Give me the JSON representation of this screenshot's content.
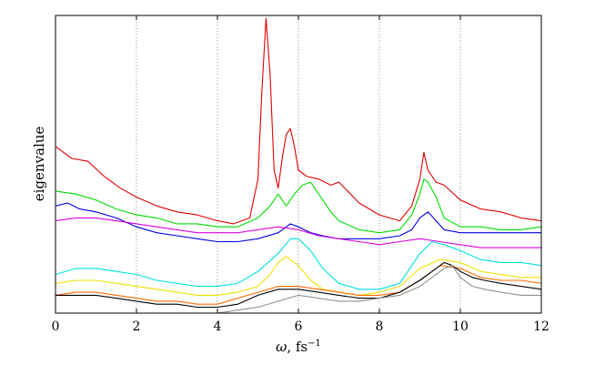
{
  "chart_data": {
    "type": "line",
    "title": "",
    "xlabel_symbol": "ω",
    "xlabel_unit": ", fs",
    "xlabel_exp": "−1",
    "ylabel": "eigenvalue",
    "xlim": [
      0,
      12
    ],
    "ylim": [
      0,
      1
    ],
    "x_ticks": [
      0,
      2,
      4,
      6,
      8,
      10,
      12
    ],
    "grid": "vertical dotted at 2, 4, 6, 8, 10",
    "y_ticks_labeled": false,
    "legend": "none",
    "series": [
      {
        "color": "#e00000",
        "x": [
          0,
          0.4,
          0.8,
          1.2,
          1.6,
          2.0,
          2.5,
          3.0,
          3.5,
          4.0,
          4.4,
          4.8,
          5.0,
          5.1,
          5.2,
          5.3,
          5.4,
          5.5,
          5.6,
          5.7,
          5.8,
          5.9,
          6.0,
          6.2,
          6.5,
          6.8,
          7.0,
          7.5,
          8.0,
          8.5,
          8.8,
          9.0,
          9.1,
          9.2,
          9.4,
          9.6,
          10.0,
          10.5,
          11.0,
          11.5,
          12.0
        ],
        "y": [
          0.56,
          0.52,
          0.51,
          0.46,
          0.42,
          0.39,
          0.36,
          0.34,
          0.33,
          0.31,
          0.3,
          0.32,
          0.45,
          0.75,
          0.99,
          0.8,
          0.48,
          0.42,
          0.52,
          0.6,
          0.62,
          0.56,
          0.48,
          0.46,
          0.45,
          0.43,
          0.44,
          0.37,
          0.33,
          0.31,
          0.36,
          0.45,
          0.54,
          0.48,
          0.44,
          0.43,
          0.38,
          0.35,
          0.34,
          0.32,
          0.31
        ]
      },
      {
        "color": "#00dd00",
        "x": [
          0,
          0.5,
          1.0,
          1.5,
          2.0,
          2.5,
          3.0,
          3.5,
          4.0,
          4.5,
          5.0,
          5.3,
          5.5,
          5.7,
          5.9,
          6.1,
          6.3,
          6.5,
          6.8,
          7.0,
          7.5,
          8.0,
          8.5,
          8.8,
          9.0,
          9.1,
          9.2,
          9.4,
          9.6,
          10.0,
          10.5,
          11.0,
          11.5,
          12.0
        ],
        "y": [
          0.41,
          0.4,
          0.38,
          0.35,
          0.33,
          0.32,
          0.3,
          0.3,
          0.29,
          0.29,
          0.32,
          0.36,
          0.4,
          0.36,
          0.4,
          0.43,
          0.44,
          0.4,
          0.34,
          0.31,
          0.28,
          0.27,
          0.28,
          0.33,
          0.4,
          0.45,
          0.44,
          0.39,
          0.32,
          0.29,
          0.29,
          0.28,
          0.28,
          0.29
        ]
      },
      {
        "color": "#0000dd",
        "x": [
          0,
          0.3,
          0.6,
          1.0,
          1.5,
          2.0,
          2.5,
          3.0,
          3.5,
          4.0,
          4.5,
          5.0,
          5.5,
          5.8,
          6.0,
          6.3,
          6.6,
          7.0,
          7.5,
          8.0,
          8.5,
          8.8,
          9.0,
          9.2,
          9.4,
          9.6,
          10.0,
          10.5,
          11.0,
          11.5,
          12.0
        ],
        "y": [
          0.36,
          0.37,
          0.35,
          0.34,
          0.32,
          0.29,
          0.27,
          0.26,
          0.25,
          0.24,
          0.24,
          0.25,
          0.27,
          0.3,
          0.29,
          0.27,
          0.26,
          0.25,
          0.25,
          0.25,
          0.26,
          0.28,
          0.32,
          0.34,
          0.31,
          0.28,
          0.27,
          0.27,
          0.27,
          0.27,
          0.27
        ]
      },
      {
        "color": "#dd00dd",
        "x": [
          0,
          0.5,
          1.0,
          1.5,
          2.0,
          2.5,
          3.0,
          3.5,
          4.0,
          4.5,
          5.0,
          5.5,
          6.0,
          6.5,
          7.0,
          7.5,
          8.0,
          8.5,
          9.0,
          9.5,
          10.0,
          10.5,
          11.0,
          11.5,
          12.0
        ],
        "y": [
          0.31,
          0.32,
          0.32,
          0.31,
          0.3,
          0.29,
          0.28,
          0.27,
          0.27,
          0.27,
          0.28,
          0.29,
          0.28,
          0.26,
          0.25,
          0.24,
          0.23,
          0.24,
          0.25,
          0.24,
          0.23,
          0.22,
          0.22,
          0.22,
          0.22
        ]
      },
      {
        "color": "#00e0e0",
        "x": [
          0,
          0.5,
          1.0,
          1.5,
          2.0,
          2.5,
          3.0,
          3.5,
          4.0,
          4.5,
          5.0,
          5.5,
          5.8,
          6.0,
          6.3,
          6.6,
          7.0,
          7.5,
          8.0,
          8.5,
          9.0,
          9.3,
          9.6,
          10.0,
          10.5,
          11.0,
          11.5,
          12.0
        ],
        "y": [
          0.13,
          0.15,
          0.15,
          0.14,
          0.13,
          0.11,
          0.1,
          0.09,
          0.09,
          0.1,
          0.14,
          0.2,
          0.25,
          0.25,
          0.21,
          0.15,
          0.1,
          0.08,
          0.08,
          0.1,
          0.2,
          0.24,
          0.23,
          0.21,
          0.18,
          0.17,
          0.17,
          0.16
        ]
      },
      {
        "color": "#f0e000",
        "x": [
          0,
          0.5,
          1.0,
          1.5,
          2.0,
          2.5,
          3.0,
          3.5,
          4.0,
          4.5,
          5.0,
          5.3,
          5.5,
          5.7,
          6.0,
          6.3,
          6.6,
          7.0,
          7.5,
          8.0,
          8.5,
          9.0,
          9.5,
          10.0,
          10.5,
          11.0,
          11.5,
          12.0
        ],
        "y": [
          0.1,
          0.11,
          0.11,
          0.1,
          0.09,
          0.08,
          0.07,
          0.06,
          0.06,
          0.07,
          0.09,
          0.13,
          0.17,
          0.19,
          0.16,
          0.11,
          0.08,
          0.07,
          0.06,
          0.07,
          0.09,
          0.15,
          0.18,
          0.17,
          0.14,
          0.13,
          0.12,
          0.12
        ]
      },
      {
        "color": "#ff6a00",
        "x": [
          0,
          0.5,
          1.0,
          1.5,
          2.0,
          2.5,
          3.0,
          3.5,
          4.0,
          4.5,
          5.0,
          5.5,
          6.0,
          6.5,
          7.0,
          7.5,
          8.0,
          8.5,
          9.0,
          9.5,
          10.0,
          10.5,
          11.0,
          11.5,
          12.0
        ],
        "y": [
          0.06,
          0.07,
          0.07,
          0.06,
          0.05,
          0.04,
          0.04,
          0.03,
          0.03,
          0.05,
          0.07,
          0.09,
          0.09,
          0.08,
          0.07,
          0.06,
          0.06,
          0.07,
          0.11,
          0.16,
          0.15,
          0.12,
          0.11,
          0.11,
          0.1
        ]
      },
      {
        "color": "#000000",
        "x": [
          0,
          0.5,
          1.0,
          1.5,
          2.0,
          2.5,
          3.0,
          3.5,
          4.0,
          4.5,
          5.0,
          5.5,
          6.0,
          6.5,
          7.0,
          7.5,
          8.0,
          8.5,
          9.0,
          9.3,
          9.6,
          9.8,
          10.0,
          10.3,
          10.6,
          11.0,
          11.5,
          12.0
        ],
        "y": [
          0.06,
          0.06,
          0.06,
          0.05,
          0.04,
          0.03,
          0.03,
          0.02,
          0.02,
          0.03,
          0.06,
          0.08,
          0.08,
          0.07,
          0.06,
          0.05,
          0.05,
          0.07,
          0.11,
          0.14,
          0.17,
          0.16,
          0.14,
          0.12,
          0.11,
          0.1,
          0.09,
          0.08
        ]
      },
      {
        "color": "#909090",
        "x": [
          0,
          0.5,
          1.0,
          1.5,
          2.0,
          2.5,
          3.0,
          3.5,
          4.0,
          4.5,
          5.0,
          5.5,
          6.0,
          6.5,
          7.0,
          7.5,
          8.0,
          8.5,
          9.0,
          9.3,
          9.6,
          9.8,
          10.0,
          10.3,
          10.6,
          11.0,
          11.5,
          12.0
        ],
        "y": [
          0.0,
          0.0,
          0.0,
          0.0,
          0.0,
          0.0,
          0.0,
          0.0,
          0.0,
          0.01,
          0.02,
          0.04,
          0.06,
          0.05,
          0.04,
          0.04,
          0.05,
          0.06,
          0.09,
          0.12,
          0.15,
          0.16,
          0.12,
          0.09,
          0.08,
          0.07,
          0.06,
          0.06
        ]
      }
    ]
  }
}
